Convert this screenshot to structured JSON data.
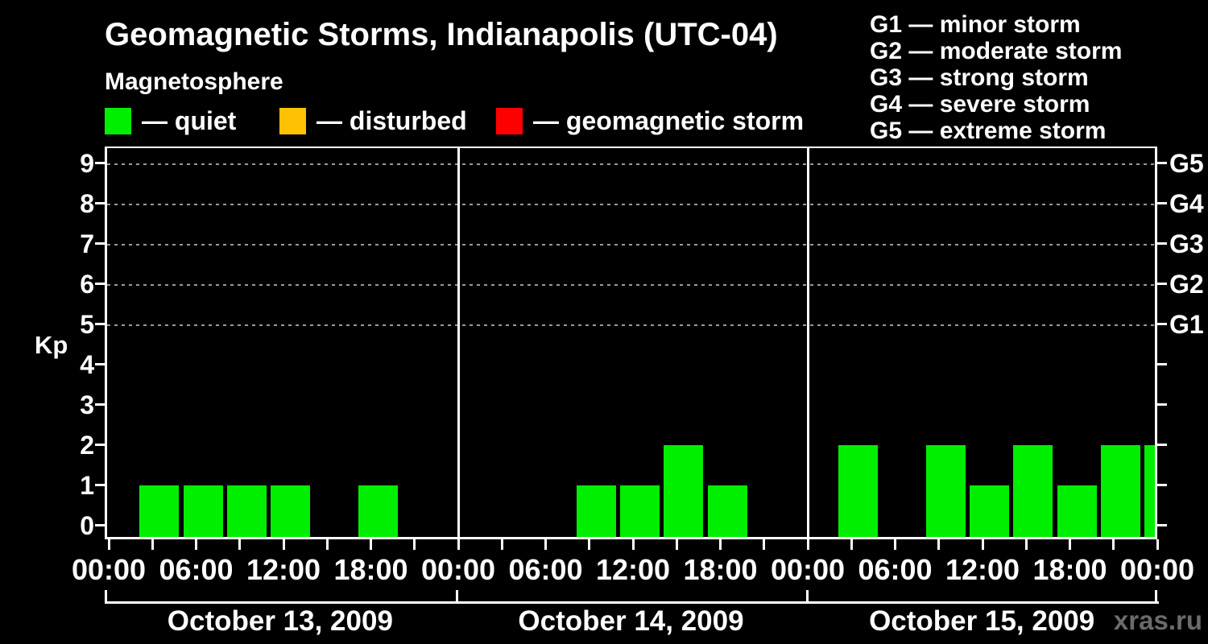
{
  "title": "Geomagnetic Storms, Indianapolis (UTC-04)",
  "subtitle": "Magnetosphere",
  "kp_axis_label": "Kp",
  "watermark": "xras.ru",
  "legend": [
    {
      "label": "— quiet",
      "color": "#00ee00"
    },
    {
      "label": "— disturbed",
      "color": "#ffc103"
    },
    {
      "label": "— geomagnetic storm",
      "color": "#ff0000"
    }
  ],
  "g_legend": [
    "G1 — minor storm",
    "G2 — moderate storm",
    "G3 — strong storm",
    "G4 — severe storm",
    "G5 — extreme storm"
  ],
  "chart_data": {
    "type": "bar",
    "title": "Geomagnetic Storms, Indianapolis (UTC-04)",
    "subtitle": "Magnetosphere",
    "ylabel": "Kp",
    "ylim": [
      0,
      9.75
    ],
    "yticks": [
      0,
      1,
      2,
      3,
      4,
      5,
      6,
      7,
      8,
      9
    ],
    "grid_levels_kp": [
      5,
      6,
      7,
      8,
      9
    ],
    "right_axis": [
      {
        "kp": 5,
        "label": "G1"
      },
      {
        "kp": 6,
        "label": "G2"
      },
      {
        "kp": 7,
        "label": "G3"
      },
      {
        "kp": 8,
        "label": "G4"
      },
      {
        "kp": 9,
        "label": "G5"
      }
    ],
    "x_tick_interval_hours": 3,
    "x_label_interval_hours": 6,
    "x_time_labels": [
      "00:00",
      "06:00",
      "12:00",
      "18:00"
    ],
    "bar_interval_hours": 3,
    "bar_color": "#00ee00",
    "days": [
      {
        "date": "October 13, 2009",
        "kp_values": [
          0,
          1,
          1,
          1,
          1,
          0,
          1,
          0
        ]
      },
      {
        "date": "October 14, 2009",
        "kp_values": [
          0,
          0,
          0,
          1,
          1,
          2,
          1,
          0
        ]
      },
      {
        "date": "October 15, 2009",
        "kp_values": [
          0,
          2,
          0,
          2,
          1,
          2,
          1,
          2
        ]
      }
    ],
    "partial_next_interval_kp": 2,
    "legend_position": "top",
    "grid": "dashed horizontal at storm levels only"
  },
  "colors": {
    "background": "#000000",
    "text": "#ffffff",
    "axis": "#ffffff",
    "grid": "#9a9a9a",
    "quiet": "#00ee00",
    "disturbed": "#ffc103",
    "storm": "#ff0000",
    "watermark": "#6b6b6b"
  }
}
